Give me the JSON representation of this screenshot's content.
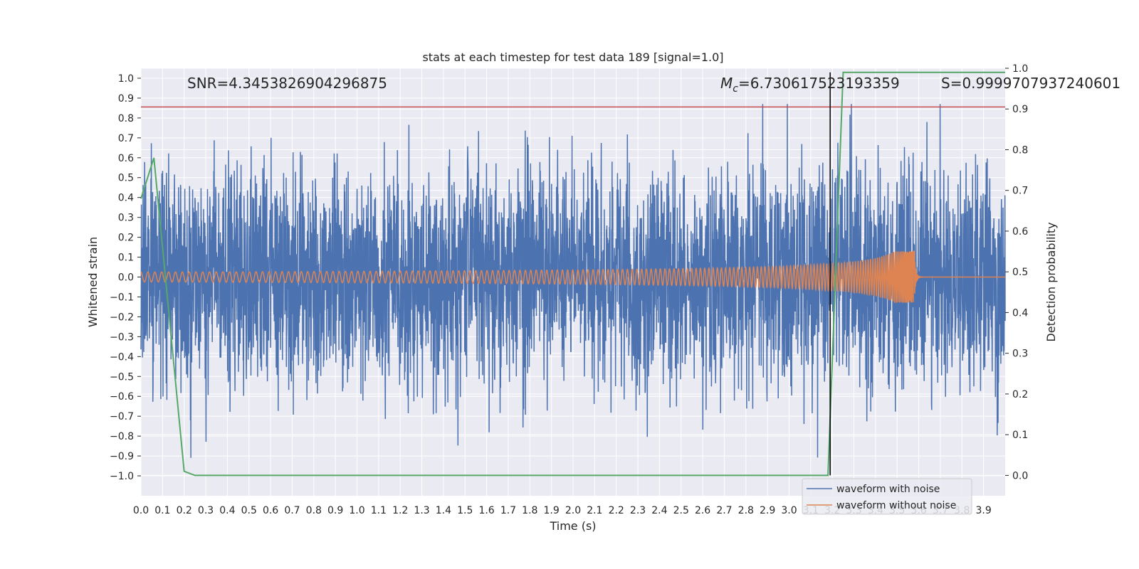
{
  "chart_data": {
    "type": "line",
    "title": "stats at each timestep for test data 189 [signal=1.0]",
    "xlabel": "Time (s)",
    "ylabel": "Whitened strain",
    "ylabel_right": "Detection probability",
    "xlim": [
      0.0,
      4.0
    ],
    "ylim": [
      -1.1,
      1.05
    ],
    "ylim_right": [
      -0.05,
      1.0
    ],
    "x_ticks": [
      "0.0",
      "0.1",
      "0.2",
      "0.3",
      "0.4",
      "0.5",
      "0.6",
      "0.7",
      "0.8",
      "0.9",
      "1.0",
      "1.1",
      "1.2",
      "1.3",
      "1.4",
      "1.5",
      "1.6",
      "1.7",
      "1.8",
      "1.9",
      "2.0",
      "2.1",
      "2.2",
      "2.3",
      "2.4",
      "2.5",
      "2.6",
      "2.7",
      "2.8",
      "2.9",
      "3.0",
      "3.1",
      "3.2",
      "3.3",
      "3.4",
      "3.5",
      "3.6",
      "3.7",
      "3.8",
      "3.9"
    ],
    "y_ticks": [
      "1.0",
      "0.9",
      "0.8",
      "0.7",
      "0.6",
      "0.5",
      "0.4",
      "0.3",
      "0.2",
      "0.1",
      "0.0",
      "−0.1",
      "−0.2",
      "−0.3",
      "−0.4",
      "−0.5",
      "−0.6",
      "−0.7",
      "−0.8",
      "−0.9",
      "−1.0"
    ],
    "y_ticks_right": [
      "1.0",
      "0.9",
      "0.8",
      "0.7",
      "0.6",
      "0.5",
      "0.4",
      "0.3",
      "0.2",
      "0.1",
      "0.0"
    ],
    "grid": true,
    "legend_position": "lower-right",
    "annotations": {
      "snr": "SNR=4.3453826904296875",
      "mc_symbol": "M",
      "mc_sub": "c",
      "mc_value": "=6.730617523193359",
      "s": "S=0.9999707937240601"
    },
    "series": [
      {
        "name": "waveform with noise",
        "color": "#4c72b0",
        "axis": "left",
        "style": "noise",
        "amplitude_peak": 0.87,
        "x_range": [
          0.0,
          4.0
        ]
      },
      {
        "name": "waveform without noise",
        "color": "#dd8452",
        "axis": "left",
        "style": "chirp",
        "amplitude_start": 0.025,
        "amplitude_peak": 0.13,
        "merger_time": 3.58,
        "x_range": [
          0.0,
          4.0
        ]
      },
      {
        "color": "#55a868",
        "axis": "right",
        "x": [
          0.0,
          0.06,
          0.2,
          0.25,
          3.18,
          3.25,
          4.0
        ],
        "y": [
          0.68,
          0.78,
          0.01,
          0.0,
          0.0,
          0.99,
          0.99
        ]
      }
    ],
    "hline_right": {
      "value": 0.905,
      "color": "#c44e52"
    },
    "vline": {
      "x": 3.19,
      "color": "#000000"
    }
  }
}
